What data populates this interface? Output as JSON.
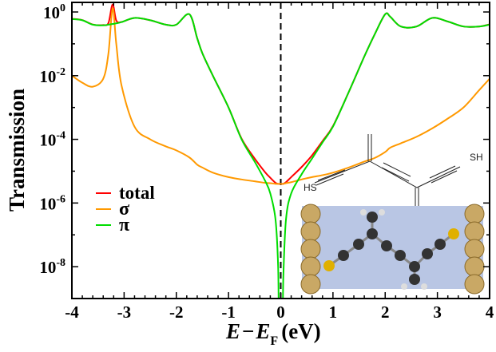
{
  "chart_data": {
    "type": "line",
    "xlabel_parts": {
      "e": "E",
      "dash": "−",
      "e2": "E",
      "sub": "F",
      "unit": "(eV)"
    },
    "ylabel": "Transmission",
    "xlim": [
      -4,
      4
    ],
    "ylim": [
      1e-09,
      2
    ],
    "yscale": "log",
    "grid": false,
    "legend_placement": "lower-left",
    "vline": {
      "x": 0,
      "style": "dashed",
      "color": "#000000"
    },
    "xticks": [
      -4,
      -3,
      -2,
      -1,
      0,
      1,
      2,
      3,
      4
    ],
    "yticks": [
      {
        "base": "10",
        "exp": "0",
        "value": 1
      },
      {
        "base": "10",
        "exp": "-2",
        "value": 0.01
      },
      {
        "base": "10",
        "exp": "-4",
        "value": 0.0001
      },
      {
        "base": "10",
        "exp": "-6",
        "value": 1e-06
      },
      {
        "base": "10",
        "exp": "-8",
        "value": 1e-08
      }
    ],
    "x": [
      -4,
      -3.8,
      -3.6,
      -3.4,
      -3.3,
      -3.22,
      -3.15,
      -3.05,
      -2.8,
      -2.5,
      -2.2,
      -2,
      -1.75,
      -1.6,
      -1.5,
      -1.3,
      -1,
      -0.75,
      -0.5,
      -0.3,
      -0.2,
      -0.1,
      -0.05,
      -0.03,
      0.03,
      0.05,
      0.1,
      0.2,
      0.4,
      0.6,
      0.8,
      1,
      1.3,
      1.6,
      1.8,
      2,
      2.1,
      2.3,
      2.6,
      2.9,
      3.2,
      3.5,
      3.8,
      4
    ],
    "series": [
      {
        "name": "total",
        "color": "#ff0000",
        "values": [
          0.61,
          0.556,
          0.405,
          0.388,
          0.45,
          1.72,
          0.54,
          0.485,
          0.65,
          0.55,
          0.4,
          0.4,
          0.85,
          0.15,
          0.05,
          0.01,
          0.001,
          0.000105,
          2.5e-05,
          9.3e-06,
          6.2e-06,
          4.3e-06,
          4e-06,
          4e-06,
          4e-06,
          4e-06,
          4.5e-06,
          6.5e-06,
          1.35e-05,
          3.15e-05,
          8.8e-05,
          0.00026,
          0.003,
          0.04,
          0.2,
          0.85,
          0.7,
          0.35,
          0.35,
          0.65,
          0.5,
          0.35,
          0.35,
          0.41
        ]
      },
      {
        "name": "σ",
        "color": "#ff9900",
        "values": [
          0.01,
          0.006,
          0.0045,
          0.008,
          0.05,
          1.3,
          0.1,
          0.005,
          0.00025,
          0.0001,
          6e-05,
          4.5e-05,
          2.7e-05,
          1.6e-05,
          1.3e-05,
          9e-06,
          6.5e-06,
          5.5e-06,
          4.8e-06,
          4.3e-06,
          4.2e-06,
          4e-06,
          4e-06,
          4e-06,
          4e-06,
          4e-06,
          4.2e-06,
          4.5e-06,
          5.5e-06,
          6.5e-06,
          7.5e-06,
          9e-06,
          1.3e-05,
          2e-05,
          2.6e-05,
          4e-05,
          5.5e-05,
          7.5e-05,
          0.00012,
          0.00022,
          0.00045,
          0.001,
          0.0035,
          0.008
        ]
      },
      {
        "name": "π",
        "color": "#00dd00",
        "values": [
          0.6,
          0.55,
          0.4,
          0.38,
          0.4,
          0.42,
          0.44,
          0.48,
          0.65,
          0.55,
          0.4,
          0.4,
          0.85,
          0.15,
          0.05,
          0.01,
          0.001,
          0.0001,
          2e-05,
          5e-06,
          2e-06,
          3e-07,
          1e-08,
          1e-10,
          1e-10,
          5e-09,
          3e-07,
          2e-06,
          8e-06,
          2.5e-05,
          8e-05,
          0.00025,
          0.003,
          0.04,
          0.2,
          0.85,
          0.7,
          0.35,
          0.35,
          0.65,
          0.5,
          0.35,
          0.35,
          0.4
        ]
      }
    ],
    "inset": {
      "left_label": "HS",
      "right_label": "SH",
      "background": "#b9c6e4"
    }
  }
}
